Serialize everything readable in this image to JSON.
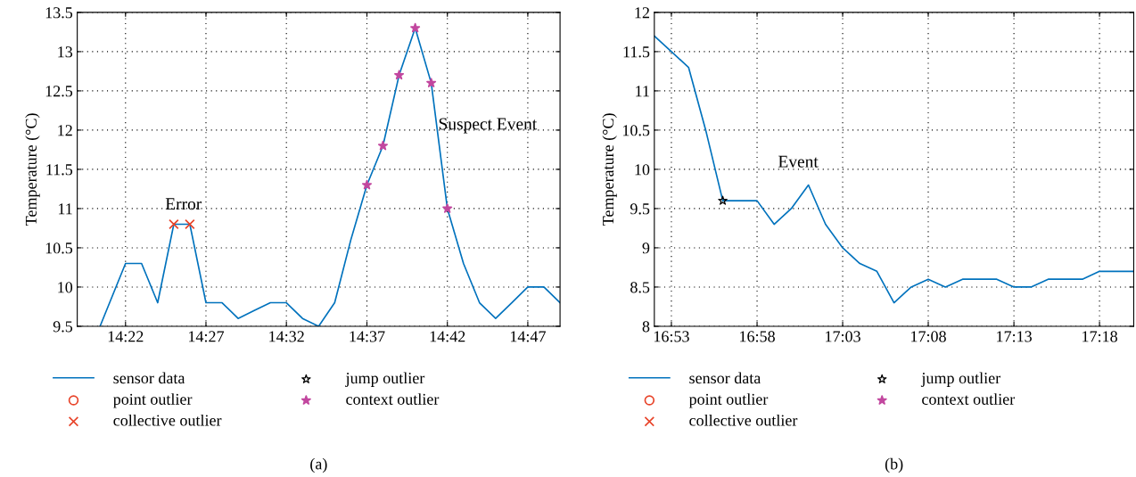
{
  "chart_data": [
    {
      "type": "line",
      "ylabel": "Temperature (°C)",
      "xlim": [
        14.3167,
        14.8167
      ],
      "ylim": [
        9.5,
        13.5
      ],
      "xticks": [
        {
          "value": 14.3667,
          "label": "14:22"
        },
        {
          "value": 14.45,
          "label": "14:27"
        },
        {
          "value": 14.5333,
          "label": "14:32"
        },
        {
          "value": 14.6167,
          "label": "14:37"
        },
        {
          "value": 14.7,
          "label": "14:42"
        },
        {
          "value": 14.7833,
          "label": "14:47"
        }
      ],
      "yticks": [
        9.5,
        10,
        10.5,
        11,
        11.5,
        12,
        12.5,
        13,
        13.5
      ],
      "grid": true,
      "legend": "bottom",
      "series": [
        {
          "name": "sensor data",
          "color": "#0072bd",
          "x": [
            14.3403,
            14.3667,
            14.3833,
            14.4,
            14.4167,
            14.4333,
            14.45,
            14.4667,
            14.4833,
            14.5,
            14.5167,
            14.5333,
            14.55,
            14.5667,
            14.5833,
            14.6,
            14.6167,
            14.6333,
            14.65,
            14.6667,
            14.6833,
            14.7,
            14.7167,
            14.7333,
            14.75,
            14.7667,
            14.7833,
            14.8,
            14.8167
          ],
          "values": [
            9.5,
            10.3,
            10.3,
            9.8,
            10.8,
            10.8,
            9.8,
            9.8,
            9.6,
            9.7,
            9.8,
            9.8,
            9.6,
            9.5,
            9.8,
            10.6,
            11.3,
            11.8,
            12.7,
            13.3,
            12.6,
            11.0,
            10.3,
            9.8,
            9.6,
            9.8,
            10.0,
            10.0,
            9.8
          ]
        },
        {
          "name": "point outlier",
          "type": "scatter",
          "color": "#e8442a",
          "marker": "circle"
        },
        {
          "name": "collective outlier",
          "type": "scatter",
          "color": "#e8442a",
          "marker": "cross",
          "x": [
            14.4167,
            14.4333
          ],
          "values": [
            10.8,
            10.8
          ]
        },
        {
          "name": "jump outlier",
          "type": "scatter",
          "color": "#000000",
          "marker": "star"
        },
        {
          "name": "context outlier",
          "type": "scatter",
          "color": "#c2479f",
          "marker": "star",
          "x": [
            14.6167,
            14.6333,
            14.65,
            14.6667,
            14.6833,
            14.7
          ],
          "values": [
            11.3,
            11.8,
            12.7,
            13.3,
            12.6,
            11.0
          ]
        }
      ],
      "annotations": [
        "Error",
        "Suspect Event",
        "(a)"
      ]
    },
    {
      "type": "line",
      "ylabel": "Temperature (°C)",
      "xlim": [
        16.8667,
        17.3333
      ],
      "ylim": [
        8,
        12
      ],
      "xticks": [
        {
          "value": 16.8833,
          "label": "16:53"
        },
        {
          "value": 16.9667,
          "label": "16:58"
        },
        {
          "value": 17.05,
          "label": "17:03"
        },
        {
          "value": 17.1333,
          "label": "17:08"
        },
        {
          "value": 17.2167,
          "label": "17:13"
        },
        {
          "value": 17.3,
          "label": "17:18"
        }
      ],
      "yticks": [
        8,
        8.5,
        9,
        9.5,
        10,
        10.5,
        11,
        11.5,
        12
      ],
      "grid": true,
      "legend": "bottom",
      "series": [
        {
          "name": "sensor data",
          "color": "#0072bd",
          "x": [
            16.8667,
            16.8833,
            16.9,
            16.9167,
            16.9333,
            16.95,
            16.9667,
            16.9833,
            17.0,
            17.0167,
            17.0333,
            17.05,
            17.0667,
            17.0833,
            17.1,
            17.1167,
            17.1333,
            17.15,
            17.1667,
            17.1833,
            17.2,
            17.2167,
            17.2333,
            17.25,
            17.2667,
            17.2833,
            17.3,
            17.3167,
            17.3333
          ],
          "values": [
            11.7,
            11.5,
            11.3,
            10.5,
            9.6,
            9.6,
            9.6,
            9.3,
            9.5,
            9.8,
            9.3,
            9.0,
            8.8,
            8.7,
            8.3,
            8.5,
            8.6,
            8.5,
            8.6,
            8.6,
            8.6,
            8.5,
            8.5,
            8.6,
            8.6,
            8.6,
            8.7,
            8.7,
            8.7
          ]
        },
        {
          "name": "point outlier",
          "type": "scatter",
          "color": "#e8442a",
          "marker": "circle"
        },
        {
          "name": "collective outlier",
          "type": "scatter",
          "color": "#e8442a",
          "marker": "cross"
        },
        {
          "name": "jump outlier",
          "type": "scatter",
          "color": "#000000",
          "marker": "star",
          "x": [
            16.9333
          ],
          "values": [
            9.6
          ]
        },
        {
          "name": "context outlier",
          "type": "scatter",
          "color": "#c2479f",
          "marker": "star"
        }
      ],
      "annotations": [
        "Event",
        "(b)"
      ]
    }
  ]
}
